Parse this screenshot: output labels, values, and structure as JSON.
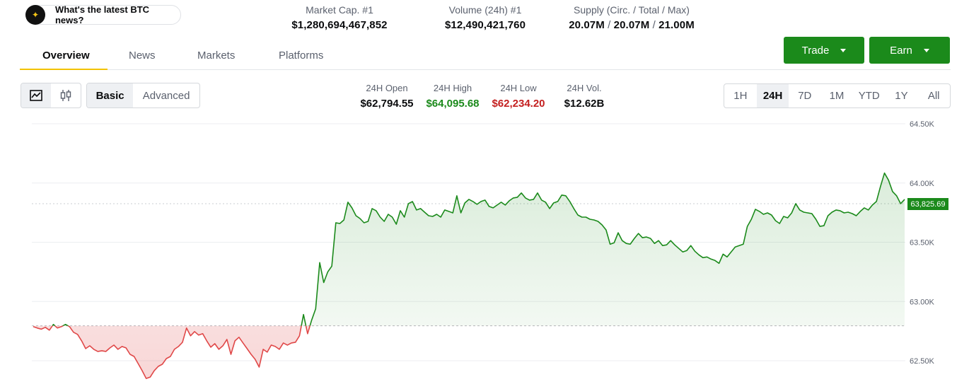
{
  "ask": {
    "icon": "sparkle-icon",
    "label": "What's the latest BTC news?"
  },
  "stats": [
    {
      "label": "Market Cap. #1",
      "value": "$1,280,694,467,852"
    },
    {
      "label": "Volume (24h) #1",
      "value": "$12,490,421,760"
    }
  ],
  "supply": {
    "label": "Supply (Circ. / Total / Max)",
    "circ": "20.07M",
    "total": "20.07M",
    "max": "21.00M",
    "sep": "/"
  },
  "tabs": {
    "overview": "Overview",
    "news": "News",
    "markets": "Markets",
    "platforms": "Platforms"
  },
  "buttons": {
    "trade": "Trade",
    "earn": "Earn"
  },
  "view_modes": {
    "basic": "Basic",
    "advanced": "Advanced"
  },
  "day_stats": {
    "open": {
      "label": "24H Open",
      "value": "$62,794.55"
    },
    "high": {
      "label": "24H High",
      "value": "$64,095.68"
    },
    "low": {
      "label": "24H Low",
      "value": "$62,234.20"
    },
    "vol": {
      "label": "24H Vol.",
      "value": "$12.62B"
    }
  },
  "ranges": {
    "r1h": "1H",
    "r24h": "24H",
    "r7d": "7D",
    "r1m": "1M",
    "rytd": "YTD",
    "r1y": "1Y",
    "rall": "All",
    "selected": "24H"
  },
  "colors": {
    "up": "#1b8a1b",
    "down": "#e04848",
    "accent": "#f2c200"
  },
  "chart_data": {
    "type": "area",
    "open": 62794.55,
    "current": 63825.69,
    "current_label": "63,825.69",
    "ylim": [
      62400,
      64550
    ],
    "yticks": [
      {
        "v": 64500,
        "label": "64.50K"
      },
      {
        "v": 64000,
        "label": "64.00K"
      },
      {
        "v": 63500,
        "label": "63.50K"
      },
      {
        "v": 63000,
        "label": "63.00K"
      },
      {
        "v": 62500,
        "label": "62.50K"
      }
    ],
    "values": [
      62788,
      62776,
      62766,
      62782,
      62758,
      62806,
      62776,
      62788,
      62806,
      62788,
      62740,
      62722,
      62668,
      62602,
      62626,
      62596,
      62578,
      62584,
      62578,
      62608,
      62632,
      62596,
      62620,
      62608,
      62554,
      62536,
      62476,
      62416,
      62350,
      62362,
      62416,
      62452,
      62470,
      62518,
      62536,
      62596,
      62620,
      62656,
      62776,
      62710,
      62746,
      62716,
      62728,
      62668,
      62614,
      62644,
      62596,
      62626,
      62680,
      62554,
      62668,
      62698,
      62650,
      62602,
      62554,
      62512,
      62446,
      62596,
      62572,
      62632,
      62620,
      62596,
      62650,
      62632,
      62650,
      62656,
      62710,
      62890,
      62728,
      62842,
      62938,
      63328,
      63160,
      63250,
      63298,
      63664,
      63658,
      63688,
      63838,
      63790,
      63724,
      63700,
      63664,
      63676,
      63784,
      63766,
      63712,
      63676,
      63736,
      63712,
      63652,
      63766,
      63712,
      63826,
      63844,
      63772,
      63784,
      63754,
      63724,
      63718,
      63736,
      63712,
      63772,
      63760,
      63748,
      63892,
      63748,
      63832,
      63862,
      63844,
      63820,
      63844,
      63856,
      63802,
      63790,
      63814,
      63838,
      63814,
      63850,
      63874,
      63880,
      63916,
      63874,
      63856,
      63862,
      63916,
      63856,
      63838,
      63784,
      63832,
      63844,
      63898,
      63892,
      63844,
      63784,
      63730,
      63712,
      63712,
      63694,
      63688,
      63676,
      63646,
      63604,
      63484,
      63496,
      63580,
      63514,
      63490,
      63484,
      63532,
      63574,
      63538,
      63544,
      63532,
      63490,
      63514,
      63472,
      63478,
      63514,
      63478,
      63448,
      63418,
      63430,
      63472,
      63424,
      63394,
      63370,
      63376,
      63358,
      63346,
      63322,
      63400,
      63376,
      63418,
      63460,
      63472,
      63484,
      63634,
      63694,
      63778,
      63760,
      63736,
      63748,
      63730,
      63682,
      63658,
      63718,
      63706,
      63748,
      63826,
      63772,
      63754,
      63748,
      63742,
      63694,
      63634,
      63640,
      63724,
      63754,
      63772,
      63766,
      63748,
      63754,
      63742,
      63724,
      63760,
      63790,
      63772,
      63814,
      63844,
      63970,
      64084,
      64024,
      63928,
      63892,
      63826,
      63862
    ]
  }
}
